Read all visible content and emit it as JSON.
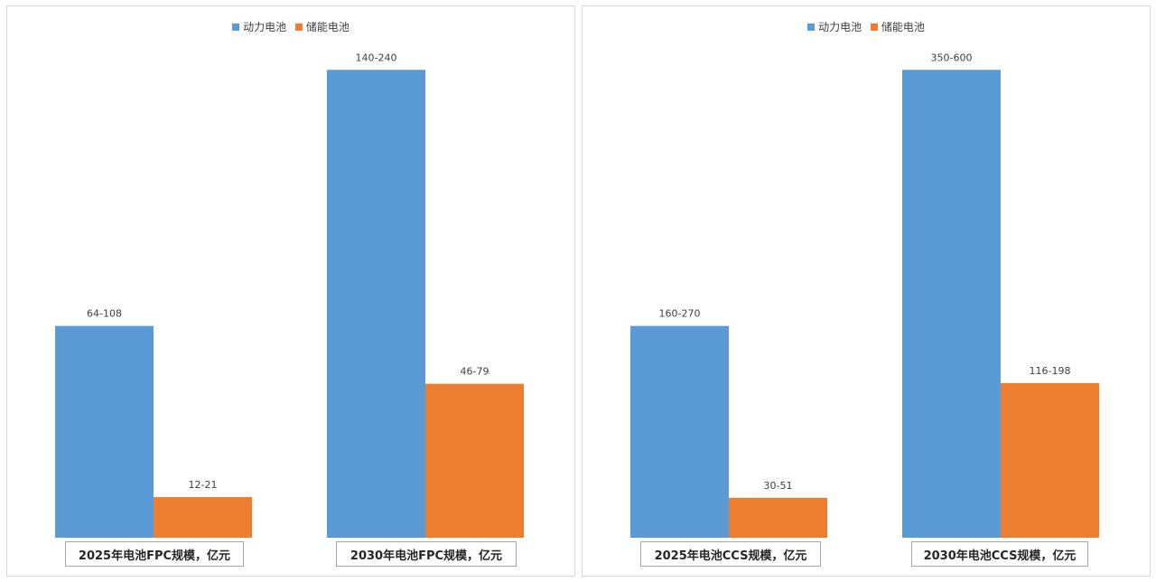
{
  "legend": [
    {
      "name": "动力电池",
      "color": "#5b9bd5"
    },
    {
      "name": "储能电池",
      "color": "#ed7d31"
    }
  ],
  "chart_data": [
    {
      "type": "bar",
      "categories": [
        "2025年电池FPC规模，亿元",
        "2030年电池FPC规模，亿元"
      ],
      "series": [
        {
          "name": "动力电池",
          "color": "#5b9bd5",
          "values": [
            86,
            190
          ],
          "labels": [
            "64-108",
            "140-240"
          ]
        },
        {
          "name": "储能电池",
          "color": "#ed7d31",
          "values": [
            16.5,
            62.5
          ],
          "labels": [
            "12-21",
            "46-79"
          ]
        }
      ],
      "ylim": [
        0,
        200
      ],
      "grid": false,
      "legend_position": "top-center"
    },
    {
      "type": "bar",
      "categories": [
        "2025年电池CCS规模，亿元",
        "2030年电池CCS规模，亿元"
      ],
      "series": [
        {
          "name": "动力电池",
          "color": "#5b9bd5",
          "values": [
            215,
            475
          ],
          "labels": [
            "160-270",
            "350-600"
          ]
        },
        {
          "name": "储能电池",
          "color": "#ed7d31",
          "values": [
            40.5,
            157
          ],
          "labels": [
            "30-51",
            "116-198"
          ]
        }
      ],
      "ylim": [
        0,
        500
      ],
      "grid": false,
      "legend_position": "top-center"
    }
  ]
}
